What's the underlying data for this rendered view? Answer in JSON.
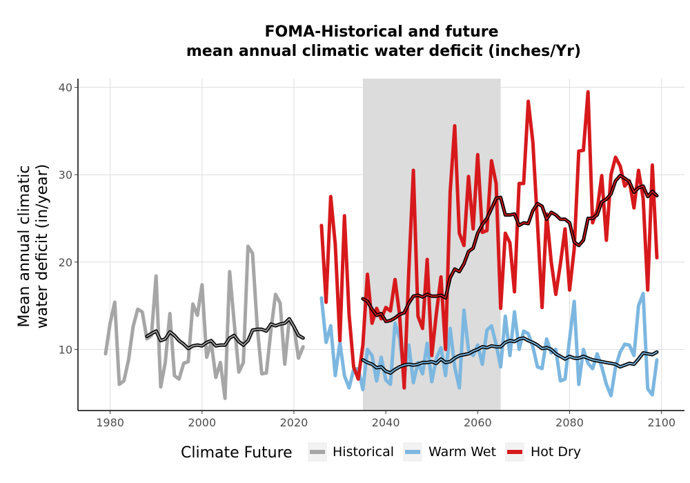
{
  "chart_data": {
    "type": "line",
    "title": "FOMA-Historical and future",
    "subtitle": "mean annual climatic water deficit (inches/Yr)",
    "xlabel": "",
    "ylabel_line1": "Mean annual climatic",
    "ylabel_line2": "water deficit (in/year)",
    "xlim": [
      1973,
      2105
    ],
    "ylim": [
      3,
      41
    ],
    "x_ticks": [
      1980,
      2000,
      2020,
      2040,
      2060,
      2080,
      2100
    ],
    "y_ticks": [
      10,
      20,
      30,
      40
    ],
    "grid": true,
    "shaded_period": [
      2035,
      2065
    ],
    "legend": {
      "title": "Climate Future",
      "position": "bottom",
      "entries": [
        {
          "label": "Historical",
          "color": "#a6a6a6"
        },
        {
          "label": "Warm Wet",
          "color": "#7cb7e0"
        },
        {
          "label": "Hot Dry",
          "color": "#d7191c"
        }
      ]
    },
    "colors": {
      "historical": "#a6a6a6",
      "warm_wet": "#7cb7e0",
      "hot_dry": "#d7191c",
      "running_mean": "#000000",
      "shade": "#dcdcdc"
    },
    "series": [
      {
        "name": "Historical",
        "x": [
          1979,
          1980,
          1981,
          1982,
          1983,
          1984,
          1985,
          1986,
          1987,
          1988,
          1989,
          1990,
          1991,
          1992,
          1993,
          1994,
          1995,
          1996,
          1997,
          1998,
          1999,
          2000,
          2001,
          2002,
          2003,
          2004,
          2005,
          2006,
          2007,
          2008,
          2009,
          2010,
          2011,
          2012,
          2013,
          2014,
          2015,
          2016,
          2017,
          2018,
          2019,
          2020,
          2021,
          2022
        ],
        "values": [
          9.5,
          13.0,
          15.4,
          6.0,
          6.4,
          8.8,
          12.6,
          14.6,
          14.3,
          11.2,
          11.6,
          18.4,
          5.7,
          8.5,
          14.1,
          7.0,
          6.6,
          8.4,
          8.6,
          15.2,
          13.9,
          17.4,
          9.1,
          10.8,
          6.8,
          8.5,
          4.4,
          18.9,
          13.1,
          7.4,
          8.5,
          21.8,
          21.0,
          12.7,
          7.2,
          7.3,
          12.2,
          16.3,
          15.3,
          8.3,
          13.5,
          12.6,
          9.0,
          10.3
        ]
      },
      {
        "name": "Warm Wet",
        "x": [
          2026,
          2027,
          2028,
          2029,
          2030,
          2031,
          2032,
          2033,
          2034,
          2035,
          2036,
          2037,
          2038,
          2039,
          2040,
          2041,
          2042,
          2043,
          2044,
          2045,
          2046,
          2047,
          2048,
          2049,
          2050,
          2051,
          2052,
          2053,
          2054,
          2055,
          2056,
          2057,
          2058,
          2059,
          2060,
          2061,
          2062,
          2063,
          2064,
          2065,
          2066,
          2067,
          2068,
          2069,
          2070,
          2071,
          2072,
          2073,
          2074,
          2075,
          2076,
          2077,
          2078,
          2079,
          2080,
          2081,
          2082,
          2083,
          2084,
          2085,
          2086,
          2087,
          2088,
          2089,
          2090,
          2091,
          2092,
          2093,
          2094,
          2095,
          2096,
          2097,
          2098,
          2099
        ],
        "values": [
          15.9,
          10.8,
          12.7,
          7.0,
          10.8,
          7.0,
          5.6,
          7.7,
          7.8,
          5.4,
          10.0,
          9.3,
          6.4,
          9.1,
          6.5,
          6.0,
          13.0,
          11.3,
          6.9,
          10.5,
          6.2,
          8.5,
          7.2,
          10.7,
          6.3,
          9.0,
          10.2,
          7.0,
          12.4,
          8.0,
          5.6,
          14.5,
          9.9,
          9.3,
          10.5,
          8.3,
          12.2,
          12.7,
          10.6,
          8.0,
          13.8,
          9.3,
          14.3,
          10.0,
          12.1,
          11.8,
          10.3,
          8.0,
          7.8,
          11.2,
          9.6,
          10.0,
          6.4,
          6.6,
          11.2,
          15.5,
          6.0,
          10.0,
          8.4,
          7.8,
          9.5,
          8.0,
          6.0,
          4.7,
          8.0,
          9.7,
          10.6,
          10.5,
          9.3,
          15.0,
          16.4,
          5.5,
          4.8,
          8.8
        ]
      },
      {
        "name": "Hot Dry",
        "x": [
          2026,
          2027,
          2028,
          2029,
          2030,
          2031,
          2032,
          2033,
          2034,
          2035,
          2036,
          2037,
          2038,
          2039,
          2040,
          2041,
          2042,
          2043,
          2044,
          2045,
          2046,
          2047,
          2048,
          2049,
          2050,
          2051,
          2052,
          2053,
          2054,
          2055,
          2056,
          2057,
          2058,
          2059,
          2060,
          2061,
          2062,
          2063,
          2064,
          2065,
          2066,
          2067,
          2068,
          2069,
          2070,
          2071,
          2072,
          2073,
          2074,
          2075,
          2076,
          2077,
          2078,
          2079,
          2080,
          2081,
          2082,
          2083,
          2084,
          2085,
          2086,
          2087,
          2088,
          2089,
          2090,
          2091,
          2092,
          2093,
          2094,
          2095,
          2096,
          2097,
          2098,
          2099
        ],
        "values": [
          24.2,
          15.4,
          27.5,
          22.0,
          11.0,
          25.3,
          14.0,
          8.0,
          6.6,
          10.5,
          18.6,
          13.0,
          14.7,
          13.5,
          14.8,
          14.4,
          18.0,
          14.0,
          5.6,
          19.0,
          30.5,
          13.8,
          12.4,
          20.3,
          9.3,
          14.1,
          18.3,
          10.0,
          28.0,
          35.6,
          23.3,
          21.9,
          29.8,
          23.8,
          32.3,
          23.4,
          23.6,
          31.6,
          29.0,
          14.7,
          23.3,
          22.2,
          16.6,
          29.0,
          29.0,
          38.4,
          33.7,
          24.5,
          14.8,
          25.5,
          20.0,
          16.3,
          19.8,
          23.8,
          16.8,
          21.5,
          32.7,
          32.8,
          39.5,
          24.5,
          26.0,
          29.9,
          22.5,
          30.0,
          32.0,
          31.0,
          28.7,
          29.3,
          26.2,
          30.5,
          27.3,
          16.8,
          31.1,
          20.5
        ]
      },
      {
        "name": "Historical running mean",
        "x": [
          1988,
          1989,
          1990,
          1991,
          1992,
          1993,
          1994,
          1995,
          1996,
          1997,
          1998,
          1999,
          2000,
          2001,
          2002,
          2003,
          2004,
          2005,
          2006,
          2007,
          2008,
          2009,
          2010,
          2011,
          2012,
          2013,
          2014,
          2015,
          2016,
          2017,
          2018,
          2019,
          2020,
          2021,
          2022
        ],
        "values": [
          11.5,
          11.8,
          12.1,
          11.0,
          11.2,
          12.0,
          11.6,
          11.0,
          10.6,
          10.1,
          10.4,
          10.5,
          10.4,
          10.8,
          11.0,
          10.4,
          10.5,
          10.5,
          11.3,
          11.6,
          10.9,
          10.5,
          11.0,
          12.2,
          12.3,
          12.3,
          12.1,
          12.9,
          12.7,
          12.9,
          13.0,
          13.5,
          12.6,
          11.6,
          11.3
        ]
      },
      {
        "name": "Warm Wet running mean",
        "x": [
          2035,
          2036,
          2037,
          2038,
          2039,
          2040,
          2041,
          2042,
          2043,
          2044,
          2045,
          2046,
          2047,
          2048,
          2049,
          2050,
          2051,
          2052,
          2053,
          2054,
          2055,
          2056,
          2057,
          2058,
          2059,
          2060,
          2061,
          2062,
          2063,
          2064,
          2065,
          2066,
          2067,
          2068,
          2069,
          2070,
          2071,
          2072,
          2073,
          2074,
          2075,
          2076,
          2077,
          2078,
          2079,
          2080,
          2081,
          2082,
          2083,
          2084,
          2085,
          2086,
          2087,
          2088,
          2089,
          2090,
          2091,
          2092,
          2093,
          2094,
          2095,
          2096,
          2097,
          2098,
          2099
        ],
        "values": [
          8.8,
          8.5,
          8.3,
          7.9,
          8.0,
          7.5,
          7.3,
          7.7,
          8.0,
          8.2,
          8.3,
          8.2,
          8.3,
          8.5,
          8.5,
          8.6,
          8.4,
          8.9,
          8.5,
          8.6,
          9.0,
          9.3,
          9.4,
          9.5,
          9.8,
          10.0,
          10.3,
          10.2,
          10.4,
          10.3,
          10.3,
          10.8,
          11.0,
          10.9,
          11.2,
          11.3,
          11.0,
          10.8,
          10.5,
          10.1,
          10.2,
          10.0,
          9.5,
          9.2,
          8.9,
          9.2,
          9.0,
          9.0,
          9.2,
          9.0,
          8.8,
          8.7,
          8.6,
          8.5,
          8.4,
          8.3,
          8.0,
          8.2,
          8.4,
          8.3,
          8.9,
          9.6,
          9.5,
          9.4,
          9.7
        ]
      },
      {
        "name": "Hot Dry running mean",
        "x": [
          2035,
          2036,
          2037,
          2038,
          2039,
          2040,
          2041,
          2042,
          2043,
          2044,
          2045,
          2046,
          2047,
          2048,
          2049,
          2050,
          2051,
          2052,
          2053,
          2054,
          2055,
          2056,
          2057,
          2058,
          2059,
          2060,
          2061,
          2062,
          2063,
          2064,
          2065,
          2066,
          2067,
          2068,
          2069,
          2070,
          2071,
          2072,
          2073,
          2074,
          2075,
          2076,
          2077,
          2078,
          2079,
          2080,
          2081,
          2082,
          2083,
          2084,
          2085,
          2086,
          2087,
          2088,
          2089,
          2090,
          2091,
          2092,
          2093,
          2094,
          2095,
          2096,
          2097,
          2098,
          2099
        ],
        "values": [
          15.8,
          15.5,
          14.6,
          13.9,
          14.1,
          13.2,
          13.3,
          13.6,
          14.0,
          14.2,
          15.3,
          16.1,
          16.2,
          16.0,
          16.3,
          16.1,
          16.1,
          16.2,
          15.9,
          18.2,
          19.2,
          18.9,
          19.8,
          21.2,
          21.6,
          23.3,
          24.3,
          25.0,
          26.1,
          27.3,
          27.4,
          25.4,
          25.4,
          25.5,
          24.2,
          24.5,
          24.4,
          25.9,
          26.7,
          26.4,
          24.9,
          25.7,
          25.4,
          24.9,
          24.9,
          24.5,
          22.3,
          21.9,
          22.5,
          25.0,
          25.0,
          25.4,
          26.9,
          27.2,
          27.8,
          29.3,
          29.9,
          29.6,
          29.2,
          28.0,
          28.5,
          28.7,
          27.5,
          28.1,
          27.6
        ]
      }
    ]
  }
}
